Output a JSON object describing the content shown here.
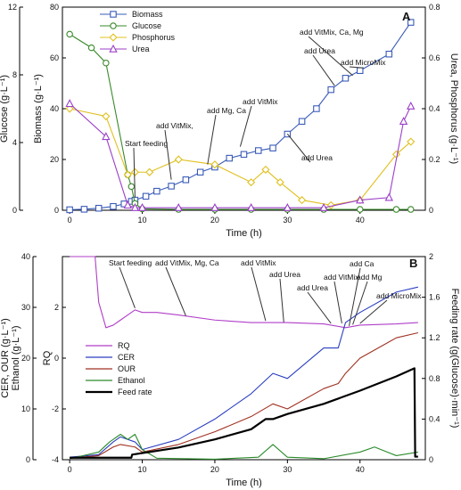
{
  "chart_data": [
    {
      "panel": "A",
      "type": "line",
      "xlabel": "Time (h)",
      "xlim": [
        -1,
        49
      ],
      "xticks": [
        0,
        10,
        20,
        30,
        40
      ],
      "axes": {
        "glucose": {
          "label": "Glucose (g·L⁻¹)",
          "lim": [
            0,
            12
          ],
          "ticks": [
            0,
            4,
            8,
            12
          ]
        },
        "biomass": {
          "label": "Biomass (g·L⁻¹)",
          "lim": [
            0,
            80
          ],
          "ticks": [
            0,
            20,
            40,
            60,
            80
          ]
        },
        "right": {
          "label": "Urea, Phosphorus (g·L⁻¹)",
          "lim": [
            0,
            0.8
          ],
          "ticks": [
            0,
            0.2,
            0.4,
            0.6,
            0.8
          ]
        }
      },
      "legend": {
        "position": "top-left",
        "entries": [
          "Biomass",
          "Glucose",
          "Phosphorus",
          "Urea"
        ]
      },
      "series": [
        {
          "name": "Biomass",
          "axis": "biomass",
          "color": "#3a5bb8",
          "marker": "square",
          "x": [
            0,
            2,
            4,
            6,
            7.5,
            8.5,
            9,
            10.5,
            12,
            14,
            16,
            18,
            20,
            22,
            24,
            26,
            28,
            30,
            32,
            34,
            36,
            38,
            40,
            44,
            47
          ],
          "y": [
            0.2,
            0.4,
            0.8,
            1.5,
            2.5,
            3.5,
            4.0,
            5.5,
            7.5,
            9.5,
            12,
            15,
            17,
            20.5,
            22,
            23.5,
            24.5,
            30,
            35,
            40,
            47.5,
            52,
            55,
            61.5,
            74
          ]
        },
        {
          "name": "Glucose",
          "axis": "glucose",
          "color": "#3a8a2a",
          "marker": "circle",
          "x": [
            0,
            3,
            5,
            8,
            8.5,
            9,
            10,
            15,
            20,
            25,
            30,
            35,
            40,
            45,
            47
          ],
          "y": [
            10.4,
            9.6,
            8.7,
            2.1,
            1.4,
            0.4,
            0.08,
            0.05,
            0.05,
            0.05,
            0.05,
            0.05,
            0.05,
            0.05,
            0.05
          ]
        },
        {
          "name": "Phosphorus",
          "axis": "right",
          "color": "#e0c020",
          "marker": "diamond",
          "x": [
            0,
            5,
            8,
            9,
            11,
            15,
            20,
            25,
            27,
            29,
            32,
            36,
            40,
            45,
            47
          ],
          "y": [
            0.4,
            0.37,
            0.14,
            0.15,
            0.15,
            0.2,
            0.18,
            0.11,
            0.16,
            0.11,
            0.04,
            0.02,
            0.04,
            0.22,
            0.27
          ]
        },
        {
          "name": "Urea",
          "axis": "right",
          "color": "#9b3fc8",
          "marker": "triangle",
          "x": [
            0,
            5,
            8,
            9,
            10,
            15,
            20,
            25,
            30,
            35,
            40,
            44,
            46,
            47
          ],
          "y": [
            0.42,
            0.29,
            0.02,
            0.01,
            0.01,
            0.01,
            0.01,
            0.01,
            0.01,
            0.01,
            0.04,
            0.05,
            0.35,
            0.41
          ]
        }
      ],
      "annotations": [
        {
          "text": "Start feeding",
          "x": 9,
          "y_biomass": 4
        },
        {
          "text": "add VitMix,",
          "x": 14,
          "y_biomass": 11
        },
        {
          "text": "add Mg, Ca",
          "x": 19,
          "y_biomass": 17
        },
        {
          "text": "add VitMix",
          "x": 23.5,
          "y_biomass": 24
        },
        {
          "text": "add Urea",
          "x": 30,
          "y_biomass": 29
        },
        {
          "text": "add Urea",
          "x": 36.5,
          "y_biomass": 48
        },
        {
          "text": "add VitMix, Ca, Mg",
          "x": 39,
          "y_biomass": 52
        },
        {
          "text": "add MicroMix",
          "x": 40.5,
          "y_biomass": 55
        }
      ],
      "panel_label": "A"
    },
    {
      "panel": "B",
      "type": "line",
      "xlabel": "Time (h)",
      "xlim": [
        -1,
        49
      ],
      "xticks": [
        0,
        10,
        20,
        30,
        40
      ],
      "axes": {
        "left1": {
          "label": "CER, OUR (g·L⁻¹)",
          "lim": [
            0,
            40
          ],
          "ticks": [
            0,
            10,
            20,
            30,
            40
          ]
        },
        "left2": {
          "label": "Ethanol (g·L⁻¹)"
        },
        "rq": {
          "label": "RQ",
          "lim": [
            -4,
            4
          ],
          "ticks": [
            -4,
            -2,
            0,
            2
          ]
        },
        "feed": {
          "label": "Feeding rate (g(Glucose)·min⁻¹)",
          "lim": [
            0,
            2
          ],
          "ticks": [
            0,
            0.4,
            0.8,
            1.2,
            1.6,
            2
          ]
        }
      },
      "legend": {
        "position": "center-left",
        "entries": [
          "RQ",
          "CER",
          "OUR",
          "Ethanol",
          "Feed rate"
        ]
      },
      "series": [
        {
          "name": "RQ",
          "axis": "rq",
          "color": "#b03ec8",
          "x": [
            0,
            3.5,
            4,
            5,
            6,
            7,
            8,
            9,
            10,
            12,
            15,
            20,
            25,
            30,
            35,
            38,
            40,
            45,
            48
          ],
          "y": [
            4,
            4,
            2.2,
            1.2,
            1.3,
            1.5,
            1.7,
            1.9,
            1.8,
            1.8,
            1.7,
            1.5,
            1.4,
            1.4,
            1.35,
            1.2,
            1.3,
            1.35,
            1.4
          ]
        },
        {
          "name": "CER",
          "axis": "left1",
          "color": "#2a3fc0",
          "x": [
            0,
            4,
            6,
            7,
            9,
            10,
            15,
            20,
            25,
            28,
            30,
            35,
            37,
            38,
            40,
            45,
            48
          ],
          "y": [
            0.5,
            1,
            3.5,
            4.5,
            3.5,
            2,
            4,
            8,
            13,
            17,
            16,
            22,
            22,
            27,
            29,
            33,
            34
          ]
        },
        {
          "name": "OUR",
          "axis": "left1",
          "color": "#a03020",
          "x": [
            0,
            4,
            6,
            7,
            9,
            10,
            15,
            20,
            25,
            28,
            30,
            35,
            37,
            38,
            40,
            45,
            48
          ],
          "y": [
            0.3,
            0.8,
            2.5,
            3,
            2.5,
            1.5,
            3,
            5.5,
            8.5,
            11,
            10,
            14,
            15,
            17,
            20,
            24,
            25
          ]
        },
        {
          "name": "Ethanol",
          "axis": "left1",
          "color": "#2a8a2a",
          "x": [
            0,
            4,
            5.5,
            7,
            8,
            9,
            10,
            12,
            20,
            26,
            28,
            30,
            35,
            40,
            42,
            45,
            48
          ],
          "y": [
            0.2,
            1.5,
            3.5,
            5,
            4,
            5,
            2,
            0.3,
            0.1,
            0.5,
            3,
            0.5,
            0.2,
            1.5,
            2.5,
            0.8,
            1.5
          ]
        },
        {
          "name": "Feed rate",
          "axis": "feed",
          "color": "#000000",
          "x": [
            0,
            8.5,
            8.6,
            15,
            20,
            25,
            27,
            28,
            30,
            35,
            40,
            45,
            47.5,
            47.6,
            48
          ],
          "y": [
            0.02,
            0.02,
            0.05,
            0.12,
            0.2,
            0.3,
            0.4,
            0.4,
            0.45,
            0.55,
            0.68,
            0.82,
            0.9,
            0.03,
            0.03
          ]
        }
      ],
      "annotations": [
        {
          "text": "Start feeding",
          "x": 9,
          "y_rq": 1.9
        },
        {
          "text": "add VitMix, Mg, Ca",
          "x": 16,
          "y_rq": 1.6
        },
        {
          "text": "add VitMix",
          "x": 27,
          "y_rq": 1.4
        },
        {
          "text": "add Urea",
          "x": 29.5,
          "y_rq": 1.35
        },
        {
          "text": "add Urea",
          "x": 36,
          "y_rq": 1.3
        },
        {
          "text": "add VitMix",
          "x": 37.5,
          "y_rq": 1.3
        },
        {
          "text": "add Ca",
          "x": 38.5,
          "y_rq": 1.2
        },
        {
          "text": "add Mg",
          "x": 39,
          "y_rq": 1.25
        },
        {
          "text": "add MicroMix",
          "x": 40,
          "y_rq": 1.3
        }
      ],
      "panel_label": "B"
    }
  ]
}
